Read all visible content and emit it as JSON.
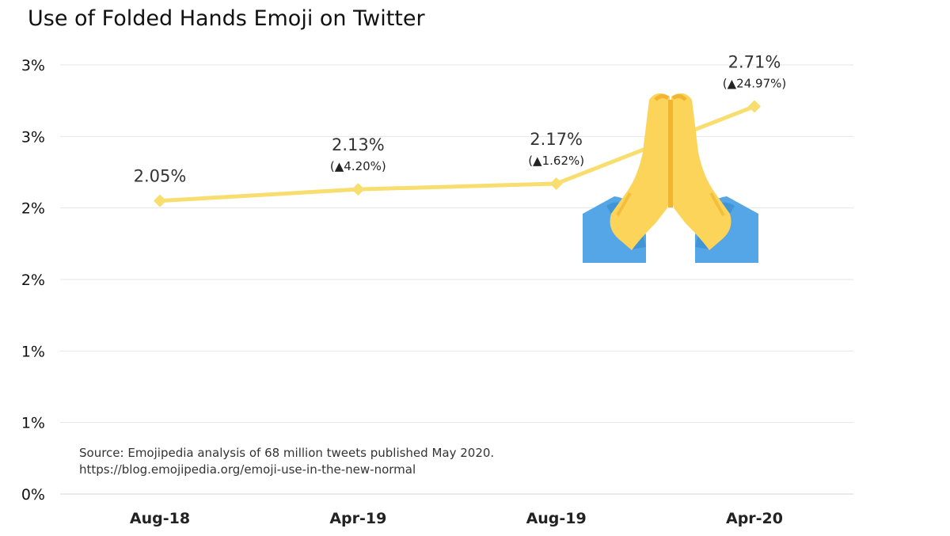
{
  "colors": {
    "line": "#F8DE6F",
    "grid": "#E6E6E6",
    "hand": "#FCD45A",
    "hand_shade": "#F1B530",
    "sleeve": "#55A6E6",
    "cuff": "#2E86C9"
  },
  "icons": [
    "folded-hands-icon"
  ],
  "chart_data": {
    "type": "line",
    "title": "Use of Folded Hands Emoji on Twitter",
    "categories": [
      "Aug-18",
      "Apr-19",
      "Aug-19",
      "Apr-20"
    ],
    "series": [
      {
        "values": [
          2.05,
          2.13,
          2.17,
          2.71
        ],
        "value_labels": [
          "2.05%",
          "2.13%",
          "2.17%",
          "2.71%"
        ],
        "change_labels": [
          "",
          "(▲4.20%)",
          "(▲1.62%)",
          "(▲24.97%)"
        ]
      }
    ],
    "ylim": [
      0,
      3
    ],
    "yticks": [
      {
        "value": 0,
        "label": "0%"
      },
      {
        "value": 0.5,
        "label": "1%"
      },
      {
        "value": 1.0,
        "label": "1%"
      },
      {
        "value": 1.5,
        "label": "2%"
      },
      {
        "value": 2.0,
        "label": "2%"
      },
      {
        "value": 2.5,
        "label": "3%"
      },
      {
        "value": 3.0,
        "label": "3%"
      }
    ],
    "grid": true,
    "legend": "none"
  },
  "source": {
    "line1": "Source: Emojipedia analysis of 68 million tweets published May 2020.",
    "line2": "https://blog.emojipedia.org/emoji-use-in-the-new-normal"
  }
}
